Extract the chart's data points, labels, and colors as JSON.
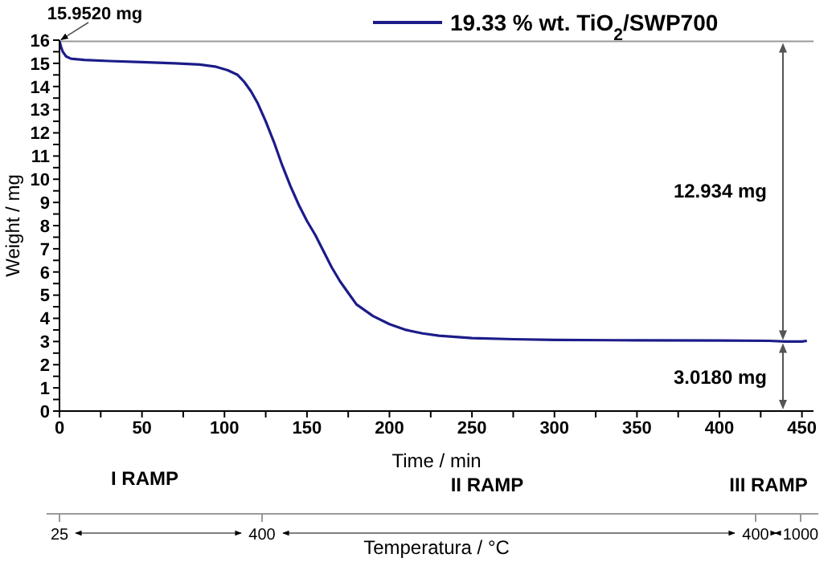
{
  "chart_data": {
    "type": "line",
    "xlabel": "Time / min",
    "ylabel": "Weight / mg",
    "x2label": "Temperatura / °C",
    "xlim": [
      0,
      457
    ],
    "xticks": [
      0,
      {
        "value": 25,
        "label": null
      },
      50,
      {
        "value": 75,
        "label": null
      },
      100,
      {
        "value": 125,
        "label": null
      },
      150,
      {
        "value": 175,
        "label": null
      },
      200,
      {
        "value": 225,
        "label": null
      },
      250,
      {
        "value": 275,
        "label": null
      },
      300,
      {
        "value": 325,
        "label": null
      },
      350,
      {
        "value": 375,
        "label": null
      },
      400,
      {
        "value": 425,
        "label": null
      },
      450
    ],
    "ylim": [
      0,
      16
    ],
    "yticks": [
      0,
      {
        "value": 0.5,
        "label": null
      },
      1,
      {
        "value": 1.5,
        "label": null
      },
      2,
      {
        "value": 2.5,
        "label": null
      },
      3,
      {
        "value": 3.5,
        "label": null
      },
      4,
      {
        "value": 4.5,
        "label": null
      },
      5,
      {
        "value": 5.5,
        "label": null
      },
      6,
      {
        "value": 6.5,
        "label": null
      },
      7,
      {
        "value": 7.5,
        "label": null
      },
      8,
      {
        "value": 8.5,
        "label": null
      },
      9,
      {
        "value": 9.5,
        "label": null
      },
      10,
      {
        "value": 10.5,
        "label": null
      },
      11,
      {
        "value": 11.5,
        "label": null
      },
      12,
      {
        "value": 12.5,
        "label": null
      },
      13,
      {
        "value": 13.5,
        "label": null
      },
      14,
      {
        "value": 14.5,
        "label": null
      },
      15,
      {
        "value": 15.5,
        "label": null
      },
      16
    ],
    "series": [
      {
        "name": "19.33 % wt. TiO$_{2}$/SWP700",
        "color": "#1c1c8a",
        "x": [
          0,
          1,
          2,
          4,
          7,
          15,
          30,
          50,
          70,
          85,
          95,
          102,
          108,
          112,
          116,
          120,
          125,
          130,
          135,
          140,
          145,
          150,
          155,
          160,
          165,
          170,
          175,
          180,
          190,
          200,
          210,
          220,
          230,
          250,
          275,
          300,
          350,
          400,
          430,
          440,
          450,
          453
        ],
        "values": [
          15.95,
          15.7,
          15.5,
          15.3,
          15.2,
          15.15,
          15.1,
          15.05,
          15.0,
          14.95,
          14.85,
          14.7,
          14.5,
          14.2,
          13.8,
          13.3,
          12.5,
          11.6,
          10.6,
          9.7,
          8.9,
          8.2,
          7.6,
          6.9,
          6.2,
          5.6,
          5.1,
          4.6,
          4.1,
          3.75,
          3.5,
          3.35,
          3.25,
          3.15,
          3.1,
          3.07,
          3.05,
          3.04,
          3.03,
          3.0,
          3.0,
          3.03
        ]
      }
    ],
    "ref_lines": [
      {
        "axis": "y",
        "value": 15.952,
        "color": "#999999"
      }
    ],
    "annotations": [
      "I RAMP",
      "II RAMP",
      "III RAMP",
      "15.9520 mg",
      "12.934 mg",
      "3.0180 mg",
      "25",
      "400",
      "400",
      "1000"
    ],
    "legend": "top",
    "marker": "none",
    "line_style": "solid",
    "grid": false
  }
}
